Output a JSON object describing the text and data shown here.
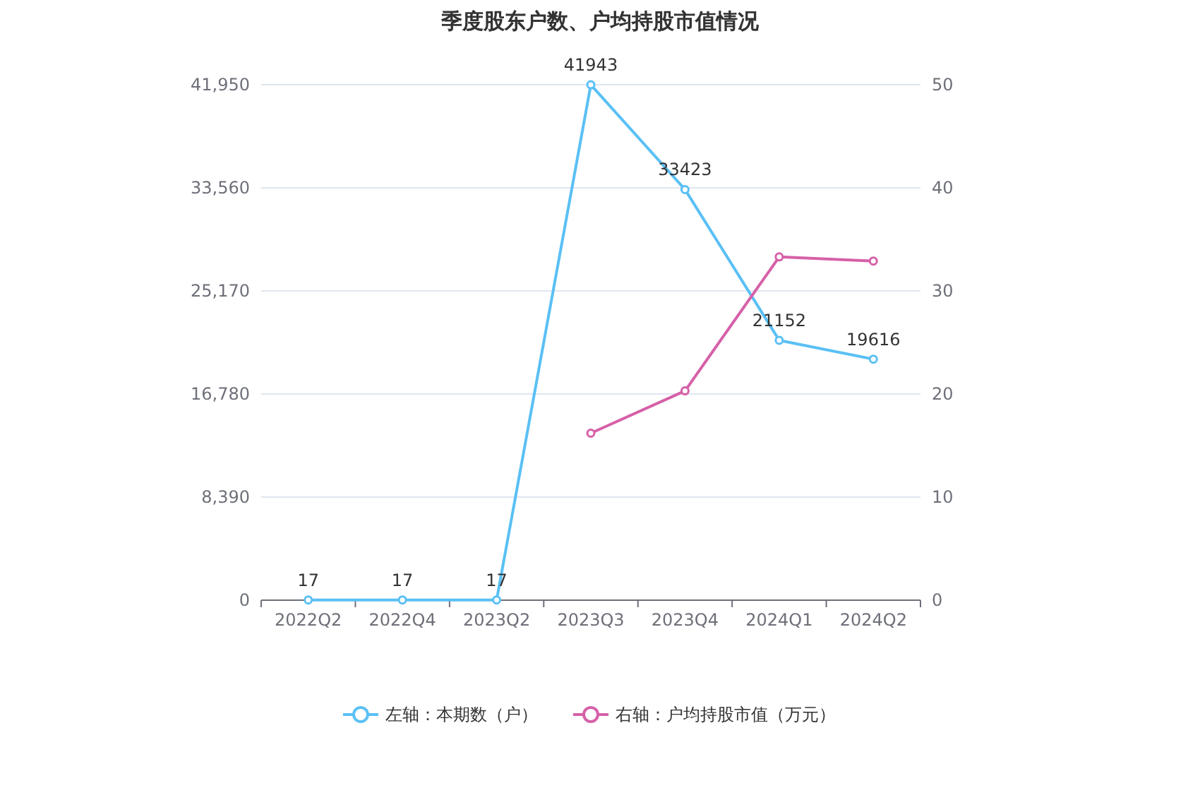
{
  "chart_data": {
    "type": "line",
    "title": "季度股东户数、户均持股市值情况",
    "categories": [
      "2022Q2",
      "2022Q4",
      "2023Q2",
      "2023Q3",
      "2023Q4",
      "2024Q1",
      "2024Q2"
    ],
    "series": [
      {
        "name": "左轴：本期数（户）",
        "color": "#5ac0f5",
        "values": [
          17,
          17,
          17,
          41943,
          33423,
          21152,
          19616
        ],
        "value_labels": [
          "17",
          "17",
          "17",
          "41943",
          "33423",
          "21152",
          "19616"
        ]
      },
      {
        "name": "右轴：户均持股市值（万元）",
        "color": "#d660a8",
        "axis": "y2",
        "values": [
          null,
          null,
          null,
          16.2,
          20.3,
          33.3,
          32.9
        ]
      }
    ],
    "ylim": [
      0,
      41950
    ],
    "yticks": [
      0,
      {
        "value": 8390,
        "label": "8,390"
      },
      {
        "value": 16780,
        "label": "16,780"
      },
      {
        "value": 25170,
        "label": "25,170"
      },
      {
        "value": 33560,
        "label": "33,560"
      },
      {
        "value": 41950,
        "label": "41,950"
      }
    ],
    "y2lim": [
      0,
      50
    ],
    "y2ticks": [
      0,
      10,
      20,
      30,
      40,
      50
    ],
    "grid": "y",
    "legend": "bottom",
    "marker": "circle",
    "line_style": "solid"
  }
}
